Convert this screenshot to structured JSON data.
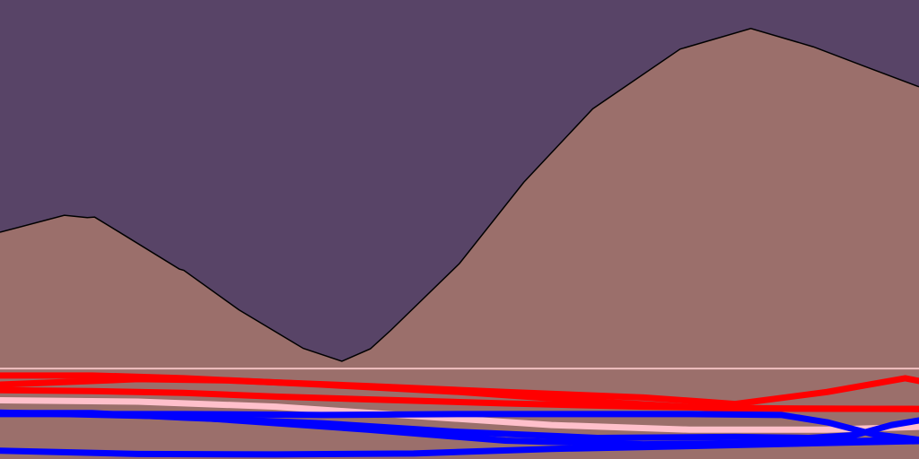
{
  "chart_data": {
    "type": "area",
    "colors": {
      "background": "#584467",
      "area_fill": "#9b6f6b",
      "area_stroke": "#000000",
      "baseline_line": "#f0c0c0",
      "red": "#ff0000",
      "blue": "#0000ff",
      "pink": "#ffc0cb"
    },
    "xlim": [
      0,
      100
    ],
    "ylim": [
      0,
      100
    ],
    "series": [
      {
        "kind": "area",
        "color_key": "area_fill",
        "x": [
          0,
          7,
          9.5,
          10.3,
          13,
          19.5,
          20,
          26,
          33,
          37.2,
          40.3,
          42.5,
          50,
          57,
          64.5,
          74,
          81.7,
          88.5,
          94,
          100
        ],
        "y": [
          49.4,
          53.1,
          52.6,
          52.7,
          49.4,
          41.4,
          41.1,
          32.5,
          24.1,
          21.3,
          24.0,
          28.0,
          42.6,
          60.3,
          76.3,
          89.3,
          93.8,
          89.8,
          85.6,
          81.1
        ]
      }
    ],
    "baseline": 19.7,
    "lines": [
      {
        "color_key": "red",
        "width": 7,
        "x": [
          0,
          10,
          20,
          35,
          50,
          65,
          78,
          100
        ],
        "y": [
          18.2,
          18.2,
          17.6,
          16.2,
          14.6,
          12.5,
          11.0,
          10.9
        ]
      },
      {
        "color_key": "red",
        "width": 7,
        "x": [
          0,
          15,
          25,
          40,
          55,
          70,
          80,
          90,
          98.5,
          100
        ],
        "y": [
          16.2,
          17.4,
          17.1,
          15.9,
          14.6,
          13.4,
          12.0,
          14.6,
          17.6,
          17.0
        ]
      },
      {
        "color_key": "red",
        "width": 7,
        "x": [
          0,
          10,
          20,
          30,
          40,
          55,
          70,
          85,
          100
        ],
        "y": [
          15.0,
          14.8,
          14.4,
          13.6,
          13.0,
          12.1,
          11.4,
          11.0,
          10.9
        ]
      },
      {
        "color_key": "pink",
        "width": 7,
        "x": [
          0,
          15,
          30,
          45,
          60,
          75,
          90,
          100
        ],
        "y": [
          12.8,
          12.5,
          11.4,
          9.4,
          7.4,
          6.4,
          6.4,
          7.0
        ]
      },
      {
        "color_key": "blue",
        "width": 7,
        "x": [
          0,
          10,
          20,
          35,
          50,
          65,
          80,
          88,
          93,
          97,
          100
        ],
        "y": [
          10.0,
          10.0,
          9.0,
          7.8,
          5.9,
          4.6,
          4.8,
          4.6,
          5.2,
          7.4,
          8.4
        ]
      },
      {
        "color_key": "blue",
        "width": 7,
        "x": [
          0,
          20,
          35,
          50,
          65,
          75,
          85,
          90,
          95,
          100
        ],
        "y": [
          9.8,
          9.8,
          9.6,
          9.8,
          9.8,
          9.8,
          9.6,
          8.0,
          5.4,
          4.2
        ]
      },
      {
        "color_key": "blue",
        "width": 7,
        "x": [
          0,
          15,
          30,
          45,
          60,
          75,
          90,
          100
        ],
        "y": [
          1.8,
          1.1,
          1.0,
          1.2,
          2.2,
          2.8,
          3.5,
          3.9
        ]
      },
      {
        "color_key": "blue",
        "width": 7,
        "x": [
          0,
          20,
          40,
          55,
          70,
          85,
          100
        ],
        "y": [
          10.1,
          9.2,
          6.4,
          4.0,
          3.2,
          3.6,
          4.2
        ]
      }
    ]
  }
}
